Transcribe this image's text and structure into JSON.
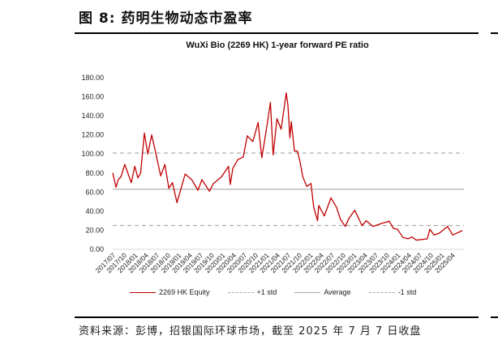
{
  "figure": {
    "title": "图 8: 药明生物动态市盈率",
    "source": "资料来源：彭博，招银国际环球市场，截至 2025 年 7 月 7 日收盘"
  },
  "chart_data": {
    "type": "line",
    "title": "WuXi Bio (2269 HK) 1-year forward PE ratio",
    "xlabel": "",
    "ylabel": "",
    "ylim": [
      0,
      180
    ],
    "y_ticks": [
      "0.00",
      "20.00",
      "40.00",
      "60.00",
      "80.00",
      "100.00",
      "120.00",
      "140.00",
      "160.00",
      "180.00"
    ],
    "x_ticks": [
      "2017/07",
      "2017/10",
      "2018/01",
      "2018/04",
      "2018/07",
      "2018/10",
      "2019/01",
      "2019/04",
      "2019/07",
      "2019/10",
      "2020/01",
      "2020/04",
      "2020/07",
      "2020/10",
      "2021/01",
      "2021/04",
      "2021/07",
      "2021/10",
      "2022/01",
      "2022/04",
      "2022/07",
      "2022/10",
      "2023/01",
      "2023/04",
      "2023/07",
      "2023/10",
      "2024/01",
      "2024/04",
      "2024/07",
      "2024/10",
      "2025/01",
      "2025/04"
    ],
    "grid": false,
    "legend_position": "bottom",
    "series": [
      {
        "name": "2269 HK Equity",
        "color": "#c00000",
        "x": [
          "2017-07-01",
          "2017-07-29",
          "2017-08-15",
          "2017-09-07",
          "2017-10-10",
          "2017-12-02",
          "2018-01-01",
          "2018-01-27",
          "2018-02-19",
          "2018-03-22",
          "2018-04-19",
          "2018-05-22",
          "2018-06-21",
          "2018-08-05",
          "2018-09-09",
          "2018-10-12",
          "2018-11-11",
          "2018-12-19",
          "2019-01-22",
          "2019-02-25",
          "2019-04-21",
          "2019-06-12",
          "2019-07-15",
          "2019-09-15",
          "2019-10-19",
          "2019-12-25",
          "2020-02-21",
          "2020-03-07",
          "2020-03-29",
          "2020-05-09",
          "2020-06-23",
          "2020-07-27",
          "2020-09-11",
          "2020-10-25",
          "2020-11-25",
          "2021-01-09",
          "2021-02-05",
          "2021-02-28",
          "2021-04-01",
          "2021-05-05",
          "2021-05-27",
          "2021-06-17",
          "2021-07-01",
          "2021-07-17",
          "2021-07-29",
          "2021-08-25",
          "2021-09-18",
          "2021-10-10",
          "2021-11-02",
          "2021-12-05",
          "2022-01-09",
          "2022-02-01",
          "2022-03-05",
          "2022-03-15",
          "2022-05-01",
          "2022-06-25",
          "2022-08-10",
          "2022-09-13",
          "2022-10-23",
          "2022-11-20",
          "2023-01-09",
          "2023-03-11",
          "2023-04-15",
          "2023-06-10",
          "2023-08-17",
          "2023-10-23",
          "2023-11-27",
          "2024-01-01",
          "2024-02-15",
          "2024-03-29",
          "2024-05-02",
          "2024-06-05",
          "2024-09-05",
          "2024-09-27",
          "2024-11-01",
          "2024-12-15",
          "2025-02-21",
          "2025-04-05",
          "2025-06-23"
        ],
        "y": [
          80,
          65,
          73,
          76,
          89,
          70,
          87,
          75,
          80,
          122,
          100,
          120,
          103,
          77,
          89,
          64,
          70,
          49,
          64,
          79,
          73,
          62,
          73,
          61,
          69,
          76,
          87,
          68,
          85,
          94,
          97,
          119,
          113,
          133,
          96,
          131,
          154,
          99,
          137,
          126,
          145,
          164,
          151,
          117,
          134,
          103,
          103,
          92,
          76,
          66,
          69,
          44,
          30,
          46,
          35,
          54,
          44,
          31,
          24,
          32,
          41,
          25,
          30,
          24,
          27,
          29.5,
          22,
          21,
          12.5,
          11,
          13,
          9.6,
          11,
          21,
          15,
          17,
          24,
          15,
          19.5
        ]
      },
      {
        "name": "+1 std",
        "color": "#a6a6a6",
        "value": 101,
        "style": "dashed"
      },
      {
        "name": "Average",
        "color": "#a6a6a6",
        "value": 63,
        "style": "solid"
      },
      {
        "name": "-1 std",
        "color": "#a6a6a6",
        "value": 25,
        "style": "dashed"
      }
    ]
  }
}
